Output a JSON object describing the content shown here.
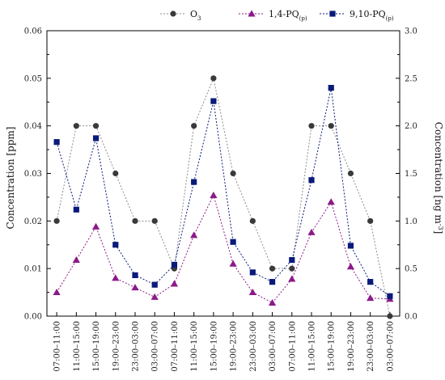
{
  "chart_data": {
    "type": "line",
    "categories": [
      "07:00–11:00",
      "11:00–15:00",
      "15:00–19:00",
      "19:00–23:00",
      "23:00–03:00",
      "03:00–07:00",
      "07:00–11:00",
      "11:00–15:00",
      "15:00–19:00",
      "19:00–23:00",
      "23:00–03:00",
      "03:00–07:00",
      "07:00–11:00",
      "11:00–15:00",
      "15:00–19:00",
      "19:00–23:00",
      "23:00–03:00",
      "03:00–07:00"
    ],
    "series": [
      {
        "name": "O3",
        "name_main": "O",
        "name_sub": "3",
        "axis": "left",
        "marker": "circle",
        "color": "#8c8c8c",
        "marker_color": "#3a3a3a",
        "values": [
          0.02,
          0.04,
          0.04,
          0.03,
          0.02,
          0.02,
          0.01,
          0.04,
          0.05,
          0.03,
          0.02,
          0.01,
          0.01,
          0.04,
          0.04,
          0.03,
          0.02,
          0.0
        ]
      },
      {
        "name": "1,4-PQ(p)",
        "name_main": "1,4-PQ",
        "name_sub": "(p)",
        "axis": "right",
        "marker": "triangle",
        "color": "#8b1a89",
        "marker_color": "#8b1a89",
        "values": [
          0.25,
          0.59,
          0.94,
          0.4,
          0.3,
          0.2,
          0.34,
          0.85,
          1.27,
          0.55,
          0.25,
          0.14,
          0.39,
          0.88,
          1.2,
          0.52,
          0.19,
          0.18
        ]
      },
      {
        "name": "9,10-PQ(p)",
        "name_main": "9,10-PQ",
        "name_sub": "(p)",
        "axis": "right",
        "marker": "square",
        "color": "#0a1a7a",
        "marker_color": "#0a1a7a",
        "values": [
          1.83,
          1.12,
          1.87,
          0.75,
          0.43,
          0.33,
          0.54,
          1.41,
          2.26,
          0.78,
          0.46,
          0.36,
          0.59,
          1.43,
          2.4,
          0.74,
          0.36,
          0.21
        ]
      }
    ],
    "ylabel": "Concentration [ppm]",
    "y2label_main": "Concentration [ng m",
    "y2label_sup": "-3",
    "y2label_end": "]",
    "ylim": [
      0,
      0.06
    ],
    "y2lim": [
      0,
      3.0
    ],
    "yticks": [
      "0.00",
      "0.01",
      "0.02",
      "0.03",
      "0.04",
      "0.05",
      "0.06"
    ],
    "y2ticks": [
      "0.0",
      "0.5",
      "1.0",
      "1.5",
      "2.0",
      "2.5",
      "3.0"
    ],
    "grid": false,
    "legend_position": "top"
  }
}
